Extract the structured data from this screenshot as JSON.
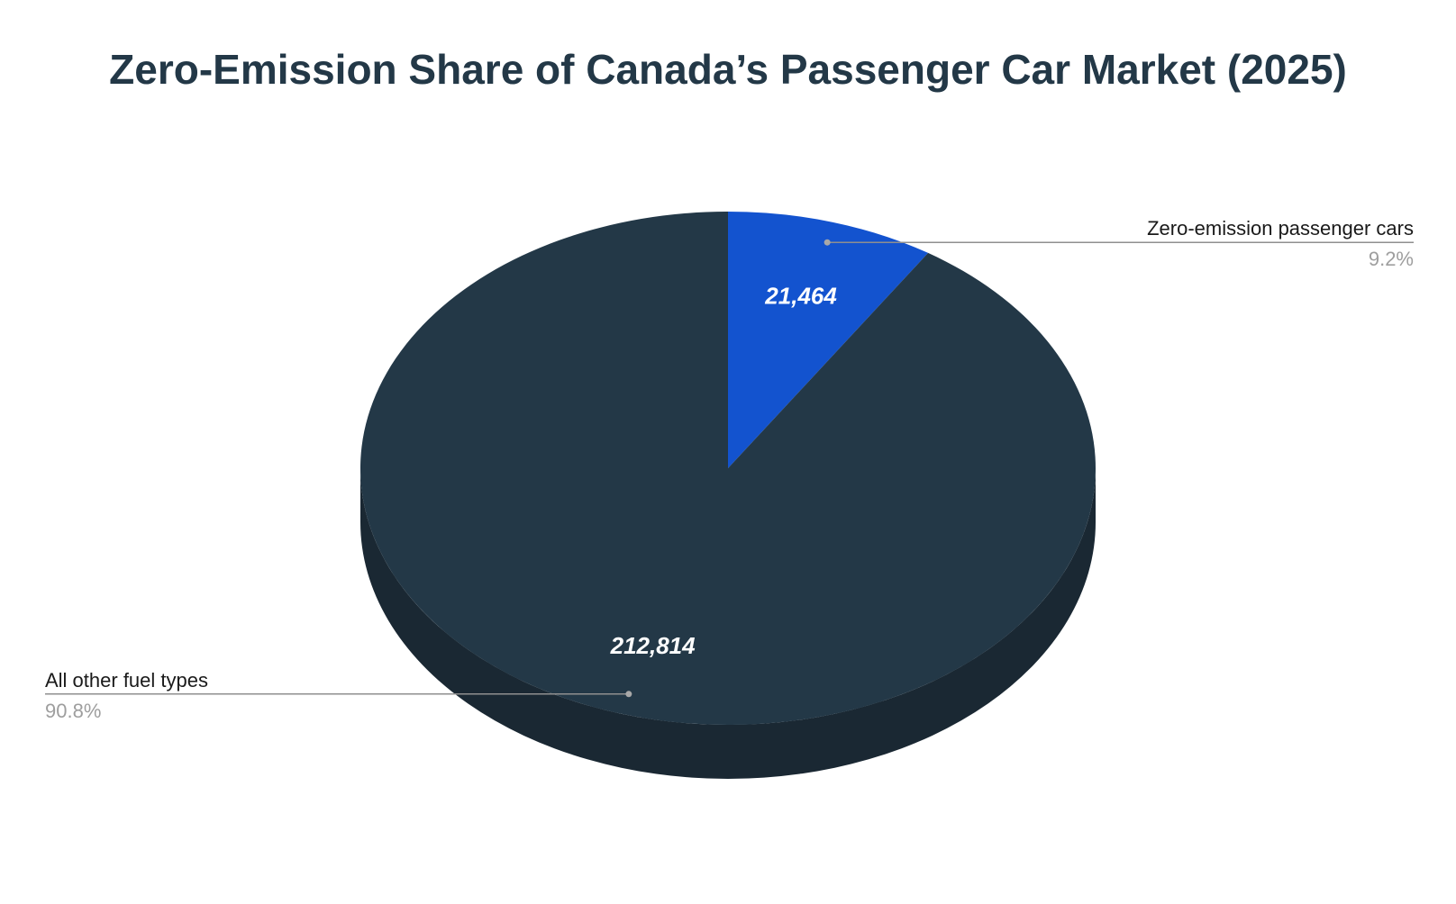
{
  "chart_data": {
    "type": "pie",
    "title": "Zero-Emission Share of Canada’s Passenger Car Market (2025)",
    "style": "3d",
    "start_angle_deg": 0,
    "direction": "clockwise",
    "slices": [
      {
        "label": "Zero-emission passenger cars",
        "value": 21464,
        "value_label": "21,464",
        "percent_label": "9.2%",
        "color": "#1353cf",
        "side_color": "#0d3a91",
        "callout_side": "right"
      },
      {
        "label": "All other fuel types",
        "value": 212814,
        "value_label": "212,814",
        "percent_label": "90.8%",
        "color": "#233847",
        "side_color": "#1a2833",
        "callout_side": "left"
      }
    ],
    "colors": {
      "title": "#233847",
      "value_text": "#ffffff",
      "callout_name": "#1a1a1a",
      "callout_pct": "#9e9e9e",
      "leader_line": "#8f8f8f"
    }
  }
}
